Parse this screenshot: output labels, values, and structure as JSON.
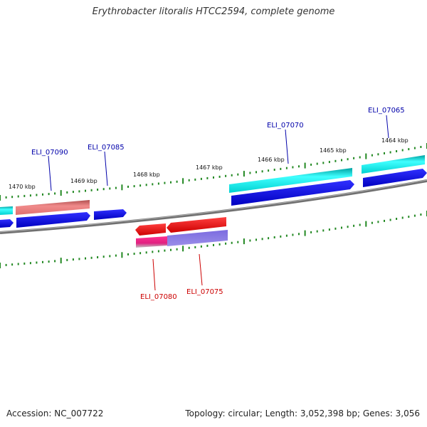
{
  "title": "Erythrobacter litoralis HTCC2594, complete genome",
  "accession": "Accession: NC_007722",
  "topology": "Topology: circular; Length: 3,052,398 bp; Genes: 3,056",
  "scale_labels": [
    "1470 kbp",
    "1469 kbp",
    "1468 kbp",
    "1467 kbp",
    "1466 kbp",
    "1465 kbp",
    "1464 kbp"
  ],
  "gene_labels": {
    "ELI_07090": "ELI_07090",
    "ELI_07085": "ELI_07085",
    "ELI_07070": "ELI_07070",
    "ELI_07065": "ELI_07065",
    "ELI_07080": "ELI_07080",
    "ELI_07075": "ELI_07075"
  },
  "colors": {
    "forward_label": "#0000aa",
    "reverse_label": "#cc0000",
    "backbone": "#808080",
    "tick": "#228822",
    "cyan": "#00e5e5",
    "blue": "#0000ee",
    "salmon": "#e57a7a",
    "red": "#ee0000",
    "magenta": "#e0207f",
    "violet": "#6a5acd"
  }
}
